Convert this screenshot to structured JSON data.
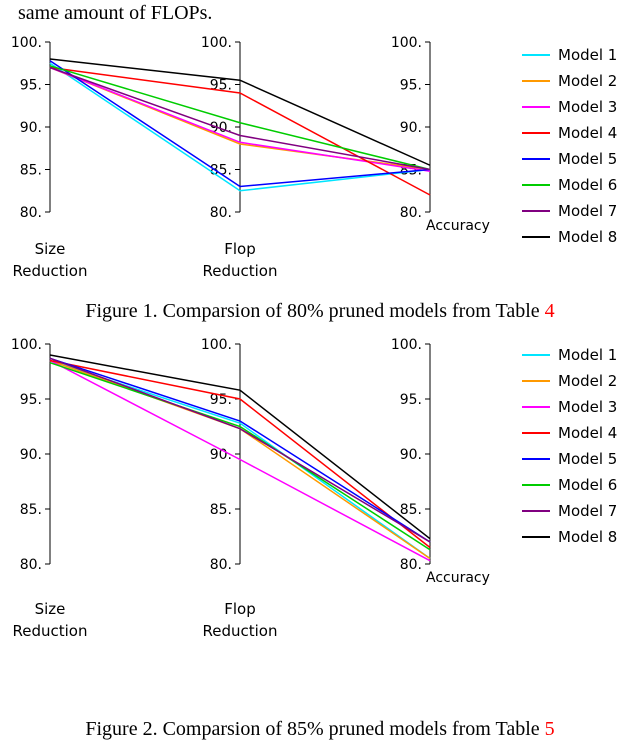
{
  "preamble_text": "same amount of FLOPs.",
  "legend": {
    "labels": [
      "Model 1",
      "Model 2",
      "Model 3",
      "Model 4",
      "Model 5",
      "Model 6",
      "Model 7",
      "Model 8"
    ],
    "colors": [
      "#00e5ff",
      "#ff9900",
      "#ff00ff",
      "#ff0000",
      "#0000ff",
      "#00cc00",
      "#800080",
      "#000000"
    ]
  },
  "axis_titles": {
    "size_l1": "Size",
    "size_l2": "Reduction",
    "flop_l1": "Flop",
    "flop_l2": "Reduction",
    "acc": "Accuracy"
  },
  "chart_common": {
    "y_min": 80,
    "y_max": 100,
    "y_ticks": [
      80,
      85,
      90,
      95,
      100
    ],
    "y_tick_labels": [
      "80.",
      "85.",
      "90.",
      "95.",
      "100."
    ],
    "axis_color": "#000000",
    "background": "#ffffff",
    "line_width": 1.5,
    "tick_fontsize": 14,
    "title_fontsize": 15
  },
  "figure1": {
    "caption_prefix": "Figure 1. Comparsion of 80% pruned models from Table ",
    "caption_ref": "4",
    "series": [
      {
        "name": "Model 1",
        "color": "#00e5ff",
        "values": [
          97.5,
          82.5,
          85.0
        ]
      },
      {
        "name": "Model 2",
        "color": "#ff9900",
        "values": [
          97.0,
          88.0,
          85.0
        ]
      },
      {
        "name": "Model 3",
        "color": "#ff00ff",
        "values": [
          97.0,
          88.2,
          84.8
        ]
      },
      {
        "name": "Model 4",
        "color": "#ff0000",
        "values": [
          97.0,
          94.0,
          82.0
        ]
      },
      {
        "name": "Model 5",
        "color": "#0000ff",
        "values": [
          97.8,
          83.0,
          85.0
        ]
      },
      {
        "name": "Model 6",
        "color": "#00cc00",
        "values": [
          97.2,
          90.5,
          85.0
        ]
      },
      {
        "name": "Model 7",
        "color": "#800080",
        "values": [
          97.0,
          89.0,
          85.0
        ]
      },
      {
        "name": "Model 8",
        "color": "#000000",
        "values": [
          98.0,
          95.5,
          85.5
        ]
      }
    ]
  },
  "figure2": {
    "caption_prefix": "Figure 2. Comparsion of 85% pruned models from Table ",
    "caption_ref": "5",
    "series": [
      {
        "name": "Model 1",
        "color": "#00e5ff",
        "values": [
          98.5,
          92.8,
          80.5
        ]
      },
      {
        "name": "Model 2",
        "color": "#ff9900",
        "values": [
          98.5,
          92.3,
          80.5
        ]
      },
      {
        "name": "Model 3",
        "color": "#ff00ff",
        "values": [
          98.5,
          89.5,
          80.3
        ]
      },
      {
        "name": "Model 4",
        "color": "#ff0000",
        "values": [
          98.5,
          95.0,
          81.5
        ]
      },
      {
        "name": "Model 5",
        "color": "#0000ff",
        "values": [
          98.7,
          93.0,
          82.0
        ]
      },
      {
        "name": "Model 6",
        "color": "#00cc00",
        "values": [
          98.3,
          92.5,
          81.3
        ]
      },
      {
        "name": "Model 7",
        "color": "#800080",
        "values": [
          98.7,
          92.3,
          82.0
        ]
      },
      {
        "name": "Model 8",
        "color": "#000000",
        "values": [
          99.0,
          95.8,
          82.3
        ]
      }
    ]
  }
}
